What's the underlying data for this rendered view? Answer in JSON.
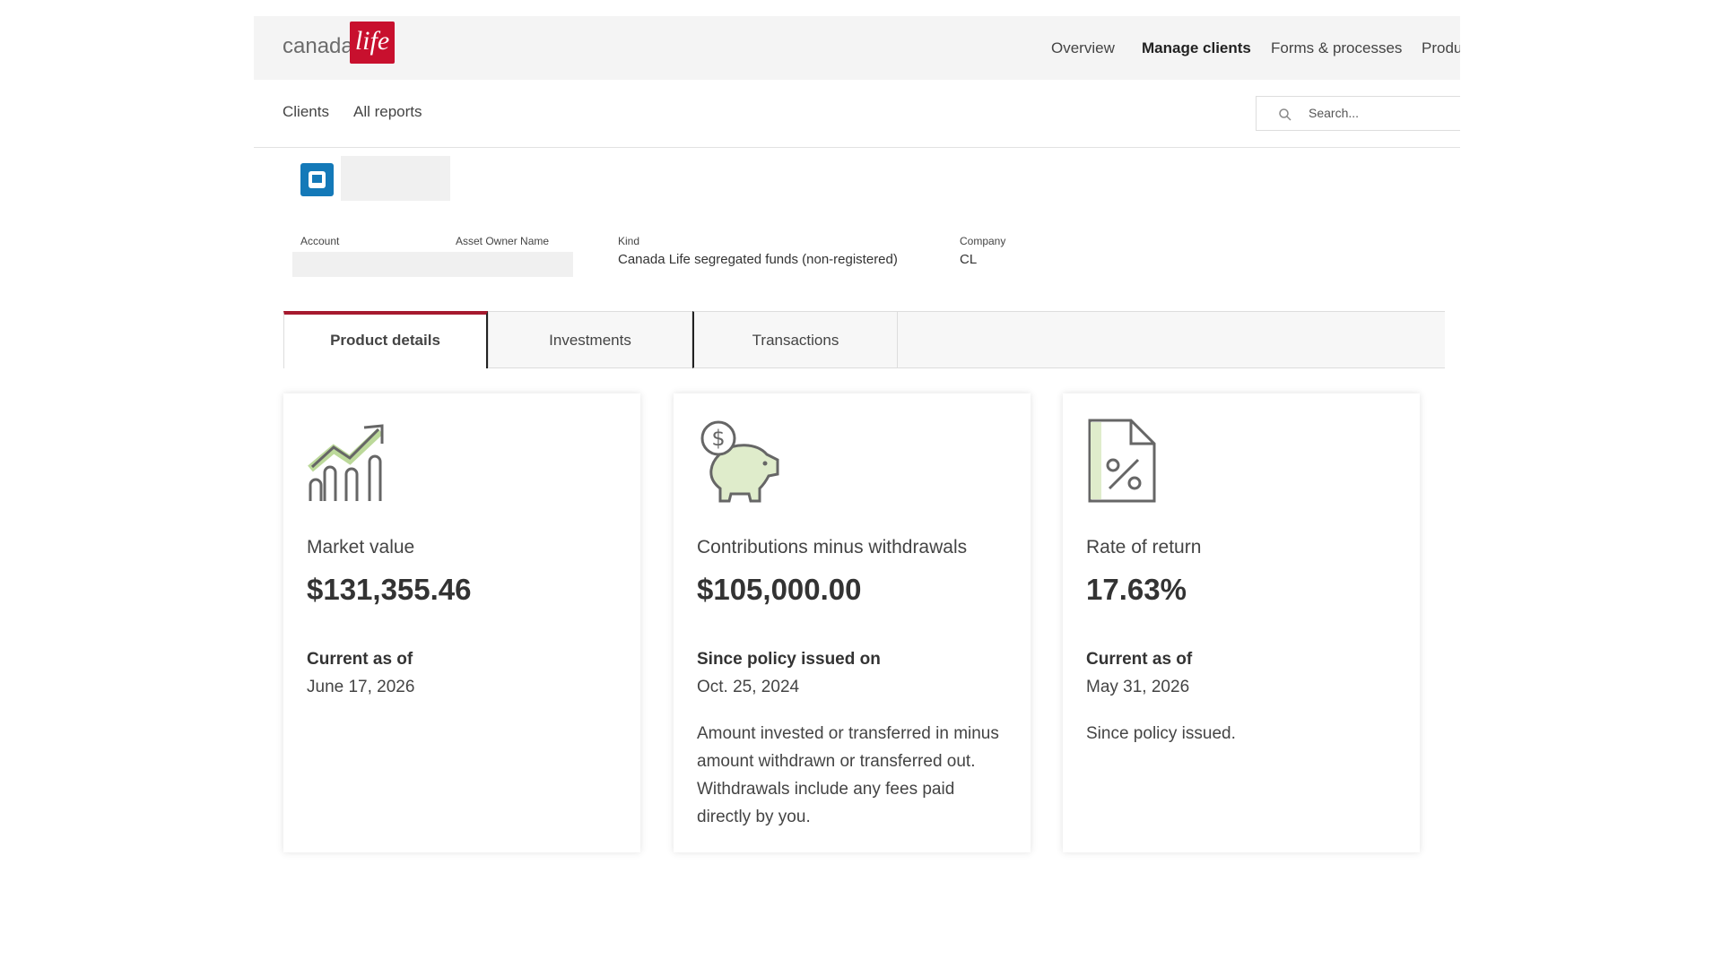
{
  "header": {
    "logo": {
      "brand": "canada",
      "mark": "life"
    },
    "nav": [
      "Overview",
      "Manage clients",
      "Forms & processes",
      "Produ"
    ]
  },
  "subnav": [
    "Clients",
    "All reports"
  ],
  "search": {
    "placeholder": "Search..."
  },
  "account": {
    "fields": [
      {
        "label": "Account"
      },
      {
        "label": "Asset Owner Name"
      },
      {
        "label": "Kind",
        "value": "Canada Life segregated funds (non-registered)"
      },
      {
        "label": "Company",
        "value": "CL"
      }
    ]
  },
  "tabs": [
    "Product details",
    "Investments",
    "Transactions"
  ],
  "cards": [
    {
      "title": "Market value",
      "value": "$131,355.46",
      "caption": "Current as of",
      "date": "June 17, 2026"
    },
    {
      "title": "Contributions minus withdrawals",
      "value": "$105,000.00",
      "caption": "Since policy issued on",
      "date": "Oct. 25, 2024",
      "description": "Amount invested or transferred in minus amount withdrawn or transferred out. Withdrawals include any fees paid directly by you."
    },
    {
      "title": "Rate of return",
      "value": "17.63%",
      "caption": "Current as of",
      "date": "May 31, 2026",
      "description": "Since policy issued."
    }
  ]
}
